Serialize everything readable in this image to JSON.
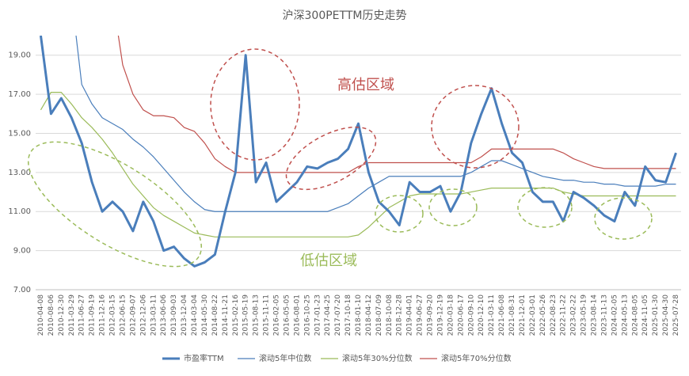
{
  "chart_data": {
    "type": "line",
    "title": "沪深300PETTM历史走势",
    "annotations": [
      {
        "text": "高估区域",
        "color": "#c0504d"
      },
      {
        "text": "低估区域",
        "color": "#9bbb59"
      }
    ],
    "categories": [
      "2010-04-08",
      "2010-08-06",
      "2010-12-30",
      "2011-03-29",
      "2011-06-27",
      "2011-09-19",
      "2011-12-16",
      "2012-03-15",
      "2012-06-15",
      "2012-09-07",
      "2012-12-06",
      "2013-03-11",
      "2013-06-06",
      "2013-09-03",
      "2013-12-04",
      "2014-03-04",
      "2014-05-30",
      "2014-08-22",
      "2014-11-21",
      "2015-02-16",
      "2015-05-19",
      "2015-08-13",
      "2015-11-11",
      "2016-02-05",
      "2016-05-05",
      "2016-08-01",
      "2016-10-25",
      "2017-01-23",
      "2017-04-25",
      "2017-07-20",
      "2017-10-18",
      "2018-01-10",
      "2018-04-12",
      "2018-07-09",
      "2018-10-08",
      "2018-12-28",
      "2019-04-01",
      "2019-06-27",
      "2019-09-20",
      "2019-12-19",
      "2020-03-18",
      "2020-06-17",
      "2020-09-10",
      "2020-12-10",
      "2021-03-11",
      "2021-06-08",
      "2021-08-31",
      "2021-12-01",
      "2022-03-01",
      "2022-05-26",
      "2022-08-23",
      "2022-11-22",
      "2023-02-22",
      "2023-05-19",
      "2023-08-14",
      "2023-11-13",
      "2024-02-05",
      "2024-05-13",
      "2024-08-05",
      "2024-11-05",
      "2025-01-30",
      "2025-04-30",
      "2025-07-28"
    ],
    "series": [
      {
        "name": "市盈率TTM",
        "color": "#4a7ebb",
        "width": 3,
        "values": [
          20.0,
          16.0,
          16.8,
          15.8,
          14.5,
          12.5,
          11.0,
          11.5,
          11.0,
          10.0,
          11.5,
          10.5,
          9.0,
          9.2,
          8.6,
          8.2,
          8.4,
          8.8,
          11.0,
          13.0,
          19.0,
          12.5,
          13.5,
          11.5,
          12.0,
          12.5,
          13.3,
          13.2,
          13.5,
          13.7,
          14.2,
          15.5,
          13.0,
          11.5,
          11.0,
          10.3,
          12.5,
          12.0,
          12.0,
          12.3,
          11.0,
          12.0,
          14.5,
          16.0,
          17.3,
          15.5,
          14.0,
          13.5,
          12.0,
          11.5,
          11.5,
          10.5,
          12.0,
          11.7,
          11.3,
          10.8,
          10.5,
          12.0,
          11.3,
          13.3,
          12.6,
          12.5,
          14.0
        ]
      },
      {
        "name": "滚动5年中位数",
        "color": "#4a7ebb",
        "width": 1.2,
        "values": [
          null,
          null,
          null,
          22.0,
          17.5,
          16.5,
          15.8,
          15.5,
          15.2,
          14.7,
          14.3,
          13.8,
          13.2,
          12.6,
          12.0,
          11.5,
          11.1,
          11.0,
          11.0,
          11.0,
          11.0,
          11.0,
          11.0,
          11.0,
          11.0,
          11.0,
          11.0,
          11.0,
          11.0,
          11.2,
          11.4,
          11.8,
          12.2,
          12.5,
          12.8,
          12.8,
          12.8,
          12.8,
          12.8,
          12.8,
          12.8,
          12.8,
          13.0,
          13.3,
          13.6,
          13.6,
          13.4,
          13.2,
          13.0,
          12.8,
          12.7,
          12.6,
          12.6,
          12.5,
          12.5,
          12.4,
          12.4,
          12.3,
          12.3,
          12.3,
          12.3,
          12.4,
          12.4
        ]
      },
      {
        "name": "滚动5年30%分位数",
        "color": "#9bbb59",
        "width": 1.2,
        "values": [
          16.2,
          17.1,
          17.1,
          16.5,
          15.8,
          15.3,
          14.7,
          14.0,
          13.2,
          12.4,
          11.8,
          11.2,
          10.8,
          10.5,
          10.2,
          9.9,
          9.8,
          9.7,
          9.7,
          9.7,
          9.7,
          9.7,
          9.7,
          9.7,
          9.7,
          9.7,
          9.7,
          9.7,
          9.7,
          9.7,
          9.7,
          9.8,
          10.2,
          10.7,
          11.2,
          11.5,
          11.8,
          11.9,
          11.9,
          11.9,
          11.9,
          11.9,
          12.0,
          12.1,
          12.2,
          12.2,
          12.2,
          12.2,
          12.2,
          12.2,
          12.2,
          12.0,
          11.9,
          11.8,
          11.8,
          11.8,
          11.8,
          11.8,
          11.8,
          11.8,
          11.8,
          11.8,
          11.8
        ]
      },
      {
        "name": "滚动5年70%分位数",
        "color": "#c0504d",
        "width": 1.2,
        "values": [
          null,
          null,
          null,
          null,
          null,
          null,
          null,
          22.0,
          18.5,
          17.0,
          16.2,
          15.9,
          15.9,
          15.8,
          15.3,
          15.1,
          14.5,
          13.7,
          13.3,
          13.0,
          13.0,
          13.0,
          13.0,
          13.0,
          13.0,
          13.0,
          13.0,
          13.0,
          13.0,
          13.0,
          13.0,
          13.3,
          13.5,
          13.5,
          13.5,
          13.5,
          13.5,
          13.5,
          13.5,
          13.5,
          13.5,
          13.5,
          13.5,
          13.8,
          14.2,
          14.2,
          14.2,
          14.2,
          14.2,
          14.2,
          14.2,
          14.0,
          13.7,
          13.5,
          13.3,
          13.2,
          13.2,
          13.2,
          13.2,
          13.2,
          13.2,
          13.2,
          13.2
        ]
      }
    ],
    "ylim": [
      7,
      20
    ],
    "yticks": [
      {
        "value": 7,
        "label": "7.00"
      },
      {
        "value": 9,
        "label": "9.00"
      },
      {
        "value": 11,
        "label": "11.00"
      },
      {
        "value": 13,
        "label": "13.00"
      },
      {
        "value": 15,
        "label": "15.00"
      },
      {
        "value": 17,
        "label": "17.00"
      },
      {
        "value": 19,
        "label": "19.00"
      }
    ],
    "grid": true,
    "legend": "bottom"
  }
}
